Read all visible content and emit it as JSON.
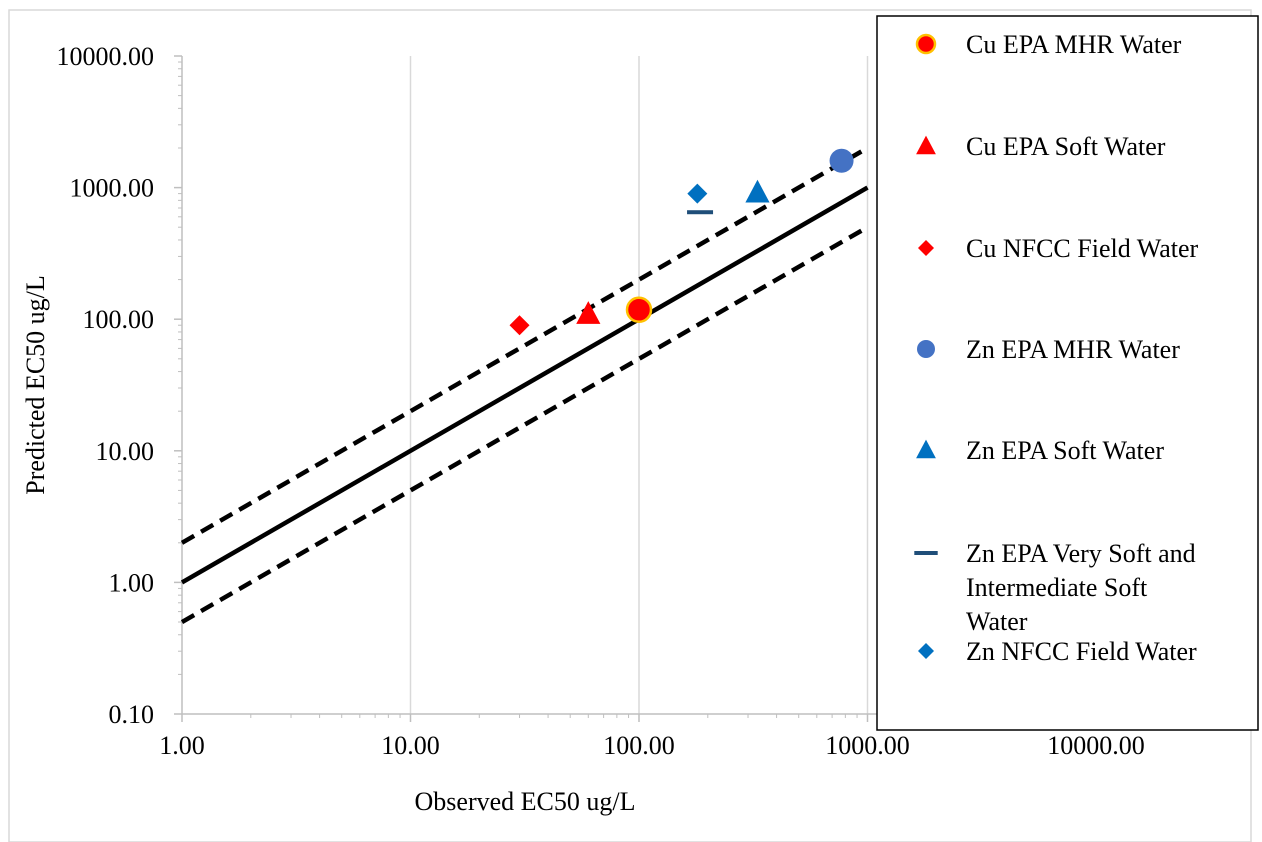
{
  "chart_data": {
    "type": "scatter",
    "title": "",
    "xlabel": "Observed EC50 ug/L",
    "ylabel": "Predicted EC50 ug/L",
    "x_scale": "log",
    "y_scale": "log",
    "xlim": [
      1,
      10000
    ],
    "ylim": [
      0.1,
      10000
    ],
    "x_ticks": [
      1,
      10,
      100,
      1000,
      10000
    ],
    "y_ticks": [
      0.1,
      1,
      10,
      100,
      1000,
      10000
    ],
    "x_tick_labels": [
      "1.00",
      "10.00",
      "100.00",
      "1000.00",
      "10000.00"
    ],
    "y_tick_labels": [
      "0.10",
      "1.00",
      "10.00",
      "100.00",
      "1000.00",
      "10000.00"
    ],
    "grid": "vertical gridlines at major x ticks",
    "legend_position": "right",
    "reference_lines": [
      {
        "kind": "1:1 line",
        "style": "solid",
        "color": "#000000",
        "x": [
          1,
          1000
        ],
        "y": [
          1,
          1000
        ]
      },
      {
        "kind": "2x line",
        "style": "dashed",
        "color": "#000000",
        "x": [
          1,
          1000
        ],
        "y": [
          2,
          2000
        ]
      },
      {
        "kind": "0.5x line",
        "style": "dashed",
        "color": "#000000",
        "x": [
          1,
          1000
        ],
        "y": [
          0.5,
          500
        ]
      }
    ],
    "series": [
      {
        "name": "Cu EPA MHR Water",
        "marker": "circle-outlined",
        "color": "#ff0000",
        "edge": "#ffc000",
        "points": [
          [
            100,
            118
          ]
        ]
      },
      {
        "name": "Cu EPA Soft Water",
        "marker": "triangle",
        "color": "#ff0000",
        "points": [
          [
            60,
            110
          ]
        ]
      },
      {
        "name": "Cu NFCC Field Water",
        "marker": "diamond",
        "color": "#ff0000",
        "points": [
          [
            30,
            90
          ]
        ]
      },
      {
        "name": "Zn EPA MHR Water",
        "marker": "circle",
        "color": "#4472c4",
        "points": [
          [
            770,
            1600
          ]
        ]
      },
      {
        "name": "Zn EPA Soft Water",
        "marker": "triangle",
        "color": "#0070c0",
        "points": [
          [
            330,
            920
          ]
        ]
      },
      {
        "name": "Zn EPA Very Soft and Intermediate Soft Water",
        "legend_lines": [
          "Zn EPA Very Soft and",
          "Intermediate Soft",
          "Water"
        ],
        "marker": "dash",
        "color": "#1f4e79",
        "points": [
          [
            185,
            650
          ]
        ]
      },
      {
        "name": "Zn NFCC Field Water",
        "marker": "diamond",
        "color": "#0070c0",
        "points": [
          [
            180,
            900
          ]
        ]
      }
    ]
  }
}
